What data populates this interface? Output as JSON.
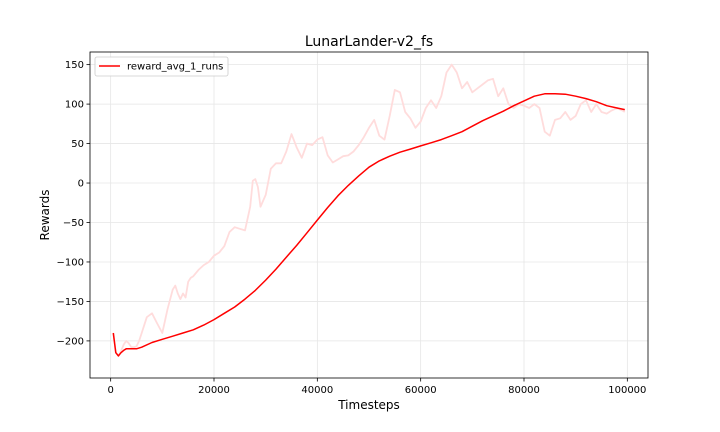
{
  "chart_data": {
    "type": "line",
    "title": "LunarLander-v2_fs",
    "xlabel": "Timesteps",
    "ylabel": "Rewards",
    "xlim": [
      -4000,
      104000
    ],
    "ylim": [
      -247,
      166
    ],
    "x_ticks": [
      0,
      20000,
      40000,
      60000,
      80000,
      100000
    ],
    "x_tick_labels": [
      "0",
      "20000",
      "40000",
      "60000",
      "80000",
      "100000"
    ],
    "y_ticks": [
      -200,
      -150,
      -100,
      -50,
      0,
      50,
      100,
      150
    ],
    "y_tick_labels": [
      "−200",
      "−150",
      "−100",
      "−50",
      "0",
      "50",
      "100",
      "150"
    ],
    "grid": true,
    "legend_position": "top-left",
    "colors": {
      "smoothed": "#ff0000",
      "raw": "#ffdcdc",
      "grid": "#e6e6e6"
    },
    "series": [
      {
        "name": "reward_avg_1_runs",
        "role": "smoothed",
        "x": [
          500,
          1000,
          1500,
          2000,
          2500,
          3000,
          4000,
          5000,
          6000,
          8000,
          10000,
          12000,
          14000,
          16000,
          18000,
          20000,
          22000,
          24000,
          26000,
          28000,
          30000,
          32000,
          34000,
          36000,
          38000,
          40000,
          42000,
          44000,
          46000,
          48000,
          50000,
          52000,
          54000,
          56000,
          58000,
          60000,
          62000,
          64000,
          66000,
          68000,
          70000,
          72000,
          74000,
          76000,
          78000,
          80000,
          82000,
          84000,
          86000,
          88000,
          90000,
          92000,
          94000,
          96000,
          98000,
          99500
        ],
        "y": [
          -190,
          -215,
          -219,
          -215,
          -212,
          -210,
          -210,
          -210,
          -208,
          -202,
          -198,
          -194,
          -190,
          -186,
          -180,
          -173,
          -165,
          -157,
          -147,
          -136,
          -123,
          -109,
          -94,
          -79,
          -63,
          -47,
          -31,
          -16,
          -3,
          9,
          20,
          28,
          34,
          39,
          43,
          47,
          51,
          55,
          60,
          65,
          72,
          79,
          85,
          91,
          98,
          104,
          110,
          113,
          113,
          112.5,
          110,
          107,
          103,
          98,
          95,
          93
        ]
      },
      {
        "role": "raw",
        "x": [
          500,
          1000,
          1500,
          2000,
          2500,
          3000,
          3500,
          4000,
          4500,
          5000,
          5500,
          6000,
          7000,
          8000,
          9000,
          10000,
          11000,
          12000,
          12500,
          13000,
          13500,
          14000,
          14500,
          15000,
          15500,
          16000,
          17000,
          18000,
          19000,
          20000,
          21000,
          22000,
          23000,
          24000,
          25000,
          26000,
          27000,
          27500,
          28000,
          28500,
          29000,
          30000,
          31000,
          32000,
          33000,
          34000,
          35000,
          36000,
          37000,
          38000,
          39000,
          40000,
          41000,
          42000,
          43000,
          44000,
          45000,
          46000,
          47000,
          48000,
          49000,
          50000,
          51000,
          52000,
          53000,
          54000,
          55000,
          56000,
          57000,
          58000,
          59000,
          60000,
          61000,
          62000,
          63000,
          64000,
          65000,
          66000,
          67000,
          68000,
          69000,
          70000,
          71000,
          72000,
          73000,
          74000,
          75000,
          76000,
          77000,
          78000,
          79000,
          80000,
          81000,
          82000,
          83000,
          84000,
          85000,
          86000,
          87000,
          88000,
          89000,
          90000,
          91000,
          92000,
          93000,
          94000,
          95000,
          96000,
          97000,
          98000,
          99000,
          99500
        ],
        "y": [
          -190,
          -215,
          -219,
          -213,
          -205,
          -200,
          -203,
          -208,
          -208,
          -207,
          -200,
          -190,
          -170,
          -165,
          -178,
          -190,
          -160,
          -135,
          -130,
          -140,
          -147,
          -140,
          -145,
          -125,
          -120,
          -118,
          -110,
          -104,
          -100,
          -92,
          -88,
          -80,
          -62,
          -56,
          -58,
          -60,
          -30,
          3,
          5,
          -5,
          -30,
          -15,
          18,
          25,
          25,
          40,
          62,
          45,
          32,
          50,
          48,
          55,
          58,
          35,
          26,
          30,
          34,
          35,
          40,
          48,
          58,
          70,
          80,
          60,
          55,
          85,
          118,
          115,
          90,
          82,
          70,
          78,
          95,
          105,
          95,
          110,
          140,
          150,
          140,
          120,
          128,
          115,
          120,
          125,
          130,
          132,
          110,
          120,
          100,
          95,
          100,
          98,
          95,
          100,
          95,
          65,
          60,
          80,
          82,
          90,
          80,
          85,
          100,
          105,
          90,
          100,
          90,
          88,
          92,
          95,
          92,
          90
        ]
      }
    ]
  }
}
